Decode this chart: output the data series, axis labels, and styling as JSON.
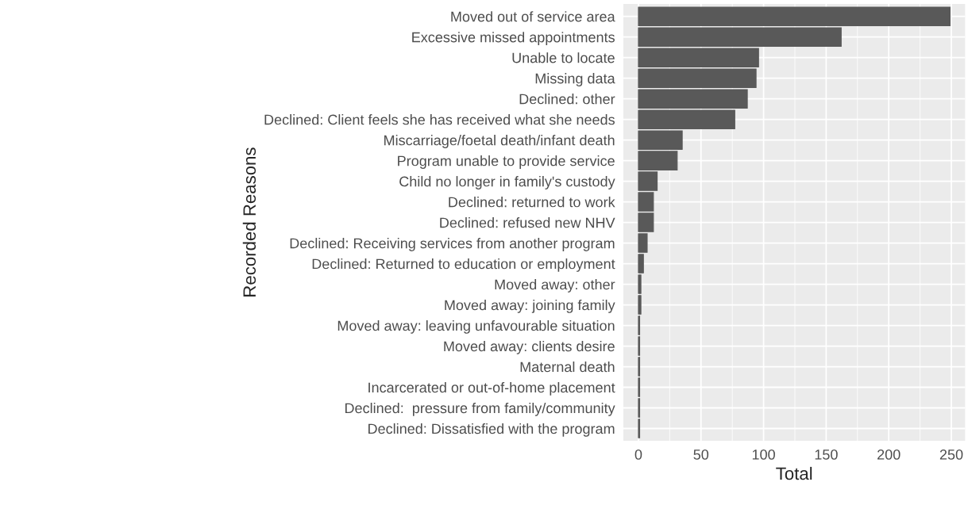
{
  "chart_data": {
    "type": "bar",
    "orientation": "horizontal",
    "xlabel": "Total",
    "ylabel": "Recorded Reasons",
    "categories": [
      "Moved out of service area",
      "Excessive missed appointments",
      "Unable to locate",
      "Missing data",
      "Declined: other",
      "Declined: Client feels she has received what she needs",
      "Miscarriage/foetal death/infant death",
      "Program unable to provide service",
      "Child no longer in family's custody",
      "Declined: returned to work",
      "Declined: refused new NHV",
      "Declined: Receiving services from another program",
      "Declined: Returned to education or employment",
      "Moved away: other",
      "Moved away: joining family",
      "Moved away: leaving unfavourable situation",
      "Moved away: clients desire",
      "Maternal death",
      "Incarcerated or out-of-home placement",
      "Declined:  pressure from family/community",
      "Declined: Dissatisfied with the program"
    ],
    "values": [
      249,
      162,
      96,
      94,
      87,
      77,
      35,
      31,
      15,
      12,
      12,
      7,
      4,
      2,
      2,
      1,
      1,
      1,
      1,
      1,
      1
    ],
    "color": "#595959",
    "xlim": [
      -12,
      261
    ],
    "xticks": [
      0,
      50,
      100,
      150,
      200,
      250
    ],
    "grid": true
  }
}
